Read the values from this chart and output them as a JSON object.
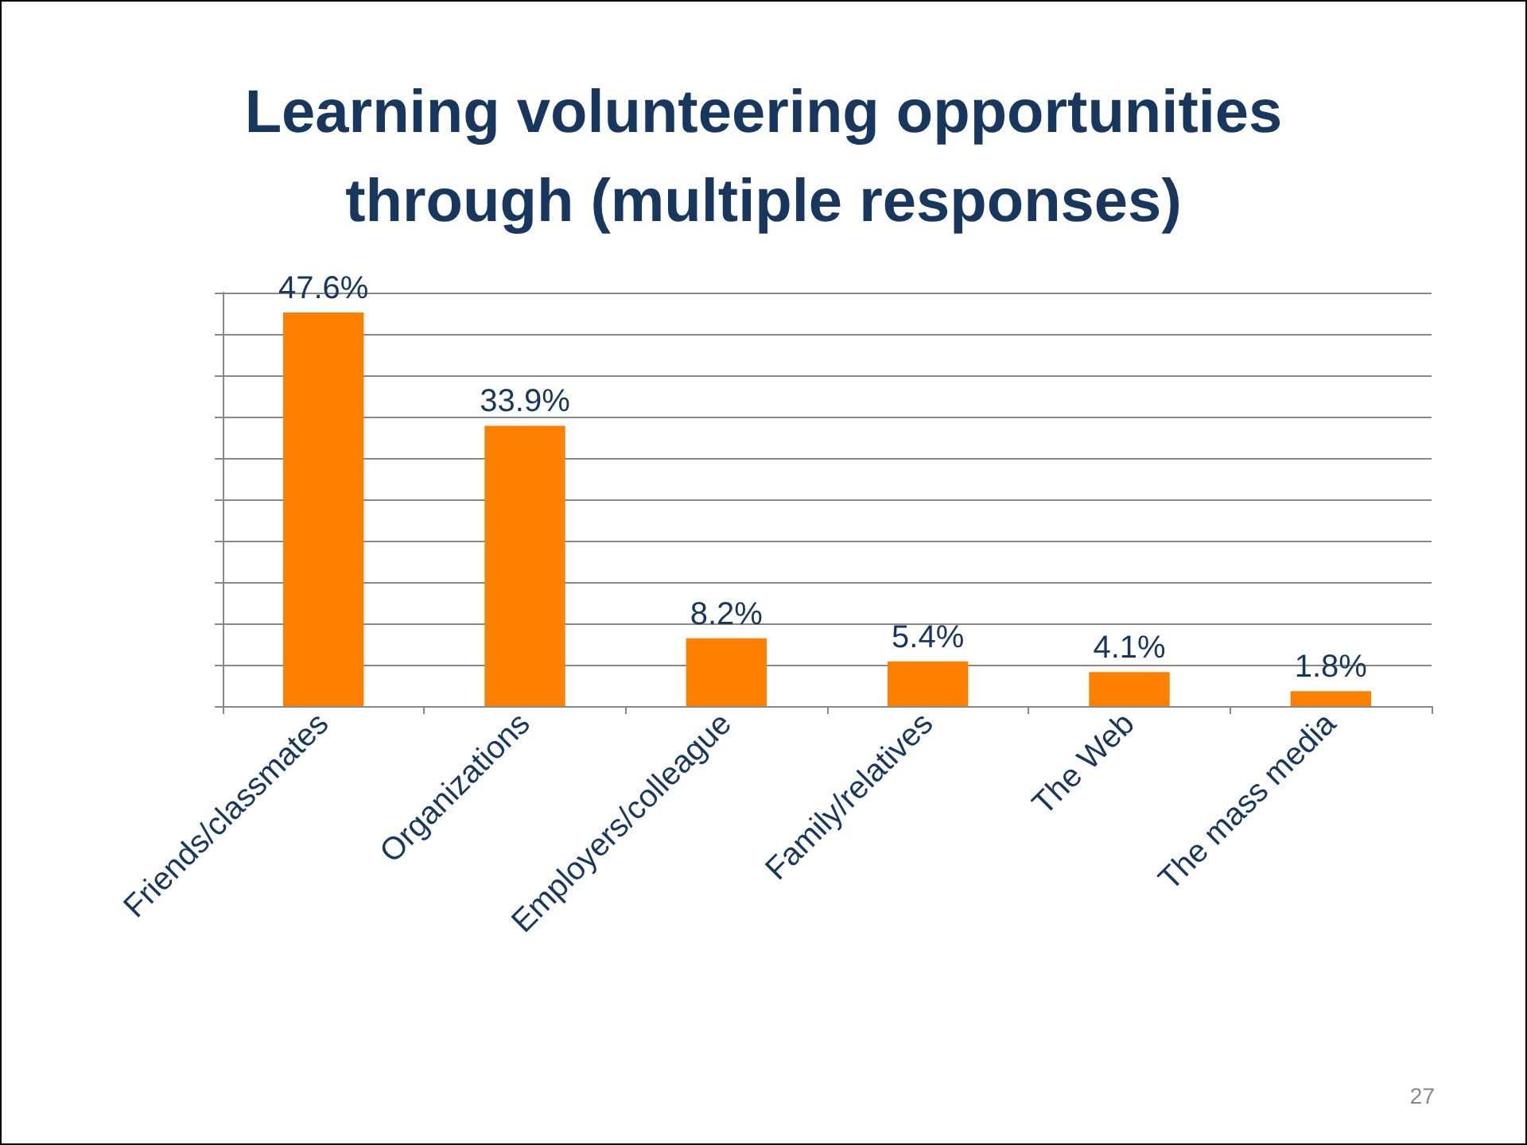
{
  "chart_data": {
    "type": "bar",
    "title": "Learning volunteering opportunities through (multiple responses)",
    "categories": [
      "Friends/classmates",
      "Organizations",
      "Employers/colleague",
      "Family/relatives",
      "The Web",
      "The mass media"
    ],
    "values": [
      47.6,
      33.9,
      8.2,
      5.4,
      4.1,
      1.8
    ],
    "value_labels": [
      "47.6%",
      "33.9%",
      "8.2%",
      "5.4%",
      "4.1%",
      "1.8%"
    ],
    "color": "#ff8000",
    "ylim": [
      0,
      50
    ],
    "yticks": [
      {
        "value": 0,
        "label": null
      },
      {
        "value": 5,
        "label": null
      },
      {
        "value": 10,
        "label": null
      },
      {
        "value": 15,
        "label": null
      },
      {
        "value": 20,
        "label": null
      },
      {
        "value": 25,
        "label": null
      },
      {
        "value": 30,
        "label": null
      },
      {
        "value": 35,
        "label": null
      },
      {
        "value": 40,
        "label": null
      },
      {
        "value": 45,
        "label": null
      },
      {
        "value": 50,
        "label": null
      }
    ],
    "grid": "y",
    "tick_labels": "x",
    "annotations": [
      "27"
    ]
  }
}
